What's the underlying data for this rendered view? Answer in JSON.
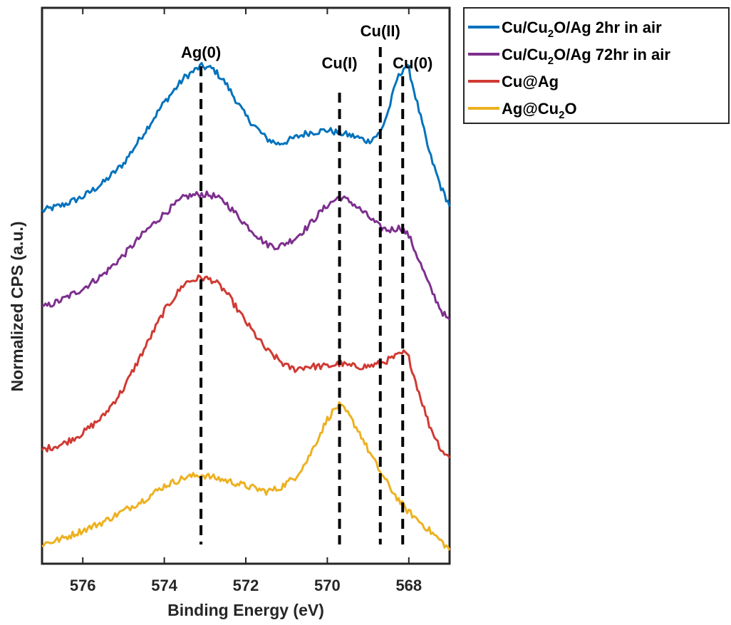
{
  "chart_data": {
    "type": "line",
    "xlabel": "Binding Energy (eV)",
    "ylabel": "Normalized CPS (a.u.)",
    "xlim": [
      577.0,
      567.0
    ],
    "x_reversed": true,
    "ylim": [
      0,
      10
    ],
    "grid": false,
    "legend_position": "outside-top-right",
    "x_ticks": [
      576,
      574,
      572,
      570,
      568
    ],
    "x_tick_labels": [
      "576",
      "574",
      "572",
      "570",
      "568"
    ],
    "annotations": [
      {
        "label": "Ag(0)",
        "x": 573.1
      },
      {
        "label": "Cu(I)",
        "x": 569.7
      },
      {
        "label": "Cu(II)",
        "x": 568.7
      },
      {
        "label": "Cu(0)",
        "x": 568.15
      }
    ],
    "series": [
      {
        "name": "Cu/Cu₂O/Ag 2hr in air",
        "legend": {
          "main": "Cu/Cu",
          "sub": "2",
          "rest": "O/Ag 2hr in air"
        },
        "color": "#0072BD",
        "x": [
          577.0,
          576.5,
          576.0,
          575.5,
          575.0,
          574.5,
          574.0,
          573.5,
          573.1,
          572.8,
          572.5,
          572.0,
          571.5,
          571.2,
          571.0,
          570.5,
          570.0,
          569.7,
          569.3,
          569.0,
          568.7,
          568.5,
          568.3,
          568.1,
          568.0,
          567.8,
          567.5,
          567.2,
          567.0
        ],
        "y": [
          6.35,
          6.45,
          6.6,
          6.85,
          7.2,
          7.75,
          8.3,
          8.75,
          8.95,
          8.9,
          8.65,
          8.05,
          7.65,
          7.55,
          7.6,
          7.75,
          7.8,
          7.75,
          7.68,
          7.6,
          7.75,
          8.15,
          8.7,
          8.95,
          8.9,
          8.3,
          7.4,
          6.75,
          6.45
        ]
      },
      {
        "name": "Cu/Cu₂O/Ag 72hr in air",
        "legend": {
          "main": "Cu/Cu",
          "sub": "2",
          "rest": "O/Ag 72hr in air"
        },
        "color": "#7E2F8E",
        "x": [
          577.0,
          576.5,
          576.0,
          575.5,
          575.0,
          574.5,
          574.0,
          573.5,
          573.1,
          572.8,
          572.5,
          572.0,
          571.5,
          571.2,
          570.8,
          570.5,
          570.2,
          570.0,
          569.7,
          569.4,
          569.0,
          568.7,
          568.5,
          568.2,
          568.0,
          567.8,
          567.5,
          567.2,
          567.0
        ],
        "y": [
          4.6,
          4.75,
          4.95,
          5.2,
          5.55,
          5.95,
          6.3,
          6.6,
          6.65,
          6.62,
          6.5,
          6.1,
          5.75,
          5.7,
          5.85,
          6.05,
          6.3,
          6.45,
          6.6,
          6.5,
          6.25,
          6.05,
          6.0,
          6.05,
          5.9,
          5.55,
          5.0,
          4.55,
          4.35
        ]
      },
      {
        "name": "Cu@Ag",
        "legend": {
          "main": "Cu@Ag",
          "sub": "",
          "rest": ""
        },
        "color": "#D03A33",
        "x": [
          577.0,
          576.5,
          576.0,
          575.5,
          575.0,
          574.5,
          574.0,
          573.5,
          573.1,
          572.8,
          572.5,
          572.0,
          571.5,
          571.0,
          570.8,
          570.5,
          570.0,
          569.7,
          569.4,
          569.0,
          568.7,
          568.4,
          568.1,
          568.0,
          567.8,
          567.5,
          567.2,
          567.0
        ],
        "y": [
          2.05,
          2.15,
          2.35,
          2.65,
          3.15,
          3.85,
          4.55,
          5.05,
          5.15,
          5.1,
          4.9,
          4.35,
          3.85,
          3.55,
          3.5,
          3.55,
          3.55,
          3.6,
          3.55,
          3.55,
          3.6,
          3.7,
          3.8,
          3.7,
          3.2,
          2.5,
          2.05,
          1.9
        ]
      },
      {
        "name": "Ag@Cu₂O",
        "legend": {
          "main": "Ag@Cu",
          "sub": "2",
          "rest": "O"
        },
        "color": "#EDB120",
        "x": [
          577.0,
          576.5,
          576.0,
          575.5,
          575.0,
          574.5,
          574.0,
          573.5,
          573.1,
          572.8,
          572.5,
          572.0,
          571.5,
          571.2,
          570.8,
          570.5,
          570.2,
          570.0,
          569.8,
          569.7,
          569.5,
          569.2,
          569.0,
          568.7,
          568.4,
          568.1,
          567.8,
          567.5,
          567.2,
          567.0
        ],
        "y": [
          0.35,
          0.45,
          0.6,
          0.75,
          0.95,
          1.15,
          1.4,
          1.55,
          1.6,
          1.55,
          1.5,
          1.4,
          1.3,
          1.35,
          1.55,
          1.85,
          2.3,
          2.6,
          2.8,
          2.85,
          2.7,
          2.35,
          2.05,
          1.65,
          1.3,
          1.0,
          0.8,
          0.6,
          0.4,
          0.25
        ]
      }
    ]
  }
}
